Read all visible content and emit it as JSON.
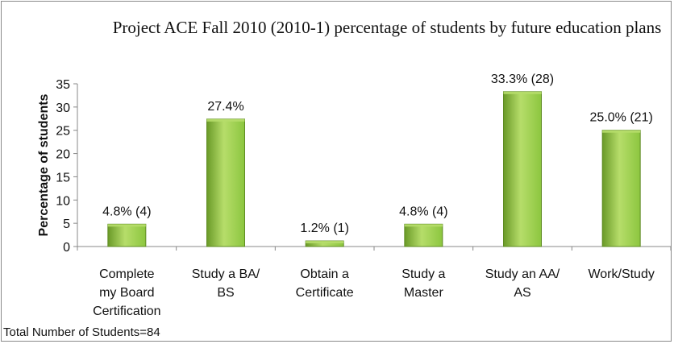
{
  "chart_data": {
    "type": "bar",
    "title": "Project ACE Fall 2010 (2010-1)  percentage of students by future education plans",
    "ylabel": "Percentage of students",
    "xlabel": "",
    "ylim": [
      0,
      35
    ],
    "yticks": [
      0,
      5,
      10,
      15,
      20,
      25,
      30,
      35
    ],
    "categories": [
      [
        "Complete",
        "my Board",
        "Certification"
      ],
      [
        "Study a BA/",
        "BS"
      ],
      [
        "Obtain a",
        "Certificate"
      ],
      [
        "Study a",
        "Master"
      ],
      [
        "Study an AA/",
        "AS"
      ],
      [
        "Work/Study"
      ]
    ],
    "values": [
      4.8,
      27.4,
      1.2,
      4.8,
      33.3,
      25.0
    ],
    "data_labels": [
      "4.8% (4)",
      "27.4%",
      "1.2% (1)",
      "4.8%  (4)",
      "33.3%  (28)",
      "25.0% (21)"
    ],
    "grid": false,
    "legend": "none",
    "bar_color": "#8cc63f",
    "bar_color_light": "#b6dd6a",
    "bar_color_dark": "#6a9a28"
  },
  "footnote": "Total Number of Students=84"
}
